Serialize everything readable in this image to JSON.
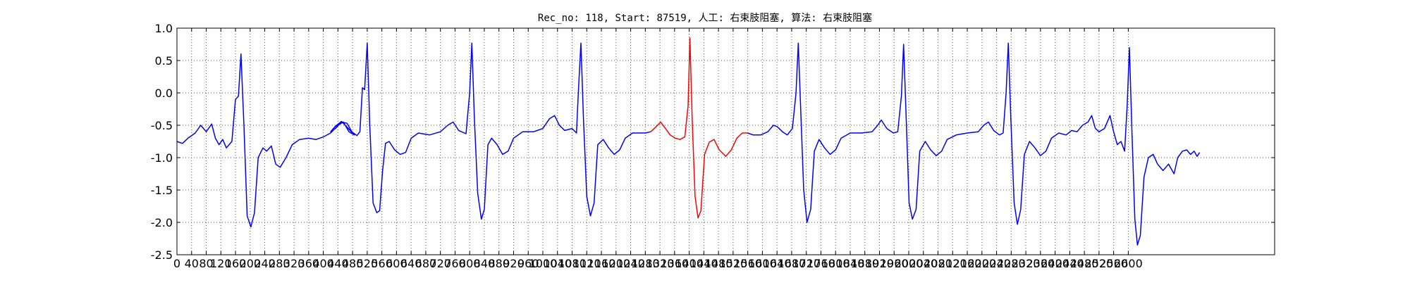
{
  "chart_data": {
    "type": "line",
    "title": "Rec_no: 118, Start: 87519, 人工: 右束肢阻塞, 算法: 右束肢阻塞",
    "xlabel": "",
    "ylabel": "",
    "xlim": [
      0,
      3000
    ],
    "ylim": [
      -2.5,
      1.0
    ],
    "y_ticks": [
      "1.0",
      "0.5",
      "0.0",
      "-0.5",
      "-1.0",
      "-1.5",
      "-2.0",
      "-2.5"
    ],
    "x_ticks": [
      "0",
      "40",
      "80",
      "120",
      "160",
      "200",
      "240",
      "280",
      "320",
      "360",
      "400",
      "440",
      "480",
      "520",
      "560",
      "600",
      "640",
      "680",
      "720",
      "760",
      "800",
      "840",
      "880",
      "920",
      "960",
      "1000",
      "1040",
      "1080",
      "1120",
      "1160",
      "1200",
      "1240",
      "1280",
      "1320",
      "1360",
      "1400",
      "1440",
      "1480",
      "1520",
      "1560",
      "1600",
      "1640",
      "1680",
      "1720",
      "1760",
      "1800",
      "1840",
      "1880",
      "1920",
      "1960",
      "2000",
      "2040",
      "2080",
      "2120",
      "2160",
      "2200",
      "2240",
      "2280",
      "2320",
      "2360",
      "2400",
      "2440",
      "2480",
      "2520",
      "2560",
      "2600"
    ],
    "grid": true,
    "grid_style": "dotted",
    "colors": {
      "signal": "#0000ff",
      "highlight": "#ff0000",
      "grid": "#555555"
    },
    "series": [
      {
        "color": "#0000ff",
        "points": [
          [
            0,
            -0.75
          ],
          [
            15,
            -0.78
          ],
          [
            30,
            -0.7
          ],
          [
            50,
            -0.62
          ],
          [
            65,
            -0.5
          ],
          [
            80,
            -0.6
          ],
          [
            95,
            -0.48
          ],
          [
            105,
            -0.7
          ],
          [
            115,
            -0.8
          ],
          [
            125,
            -0.72
          ],
          [
            135,
            -0.85
          ],
          [
            150,
            -0.75
          ],
          [
            160,
            -0.1
          ],
          [
            168,
            -0.05
          ],
          [
            175,
            0.6
          ],
          [
            183,
            -0.5
          ],
          [
            192,
            -1.9
          ],
          [
            202,
            -2.07
          ],
          [
            212,
            -1.85
          ],
          [
            222,
            -1.0
          ],
          [
            235,
            -0.85
          ],
          [
            245,
            -0.9
          ],
          [
            258,
            -0.82
          ],
          [
            270,
            -1.1
          ],
          [
            282,
            -1.15
          ],
          [
            298,
            -1.0
          ],
          [
            315,
            -0.8
          ],
          [
            335,
            -0.72
          ],
          [
            360,
            -0.7
          ],
          [
            380,
            -0.72
          ],
          [
            400,
            -0.68
          ],
          [
            420,
            -0.62
          ],
          [
            440,
            -0.5
          ],
          [
            455,
            -0.45
          ],
          [
            470,
            -0.6
          ],
          [
            485,
            -0.65
          ],
          [
            450,
            -0.44
          ],
          [
            432,
            -0.52
          ],
          [
            420,
            -0.6
          ],
          [
            433,
            -0.55
          ],
          [
            450,
            -0.45
          ],
          [
            465,
            -0.47
          ],
          [
            478,
            -0.6
          ],
          [
            492,
            -0.66
          ],
          [
            500,
            -0.6
          ],
          [
            507,
            0.08
          ],
          [
            513,
            0.05
          ],
          [
            520,
            0.77
          ],
          [
            527,
            -0.5
          ],
          [
            536,
            -1.7
          ],
          [
            546,
            -1.85
          ],
          [
            554,
            -1.82
          ],
          [
            562,
            -1.2
          ],
          [
            570,
            -0.78
          ],
          [
            580,
            -0.75
          ],
          [
            595,
            -0.88
          ],
          [
            610,
            -0.95
          ],
          [
            625,
            -0.92
          ],
          [
            640,
            -0.7
          ],
          [
            660,
            -0.62
          ],
          [
            690,
            -0.65
          ],
          [
            720,
            -0.6
          ],
          [
            740,
            -0.5
          ],
          [
            755,
            -0.45
          ],
          [
            770,
            -0.58
          ],
          [
            790,
            -0.63
          ],
          [
            800,
            0.0
          ],
          [
            806,
            0.77
          ],
          [
            813,
            -0.4
          ],
          [
            822,
            -1.55
          ],
          [
            832,
            -1.95
          ],
          [
            840,
            -1.8
          ],
          [
            850,
            -0.8
          ],
          [
            860,
            -0.7
          ],
          [
            875,
            -0.8
          ],
          [
            890,
            -0.95
          ],
          [
            905,
            -0.9
          ],
          [
            920,
            -0.7
          ],
          [
            945,
            -0.6
          ],
          [
            975,
            -0.6
          ],
          [
            1000,
            -0.55
          ],
          [
            1018,
            -0.4
          ],
          [
            1032,
            -0.35
          ],
          [
            1045,
            -0.5
          ],
          [
            1060,
            -0.58
          ],
          [
            1080,
            -0.55
          ],
          [
            1092,
            -0.62
          ],
          [
            1097,
            0.0
          ],
          [
            1104,
            0.77
          ],
          [
            1111,
            -0.4
          ],
          [
            1120,
            -1.6
          ],
          [
            1130,
            -1.9
          ],
          [
            1140,
            -1.7
          ],
          [
            1150,
            -0.8
          ],
          [
            1165,
            -0.72
          ],
          [
            1180,
            -0.85
          ],
          [
            1195,
            -0.95
          ],
          [
            1210,
            -0.88
          ],
          [
            1225,
            -0.7
          ],
          [
            1245,
            -0.62
          ],
          [
            1265,
            -0.62
          ],
          [
            1280,
            -0.62
          ],
          [
            1295,
            -0.6
          ]
        ]
      },
      {
        "color": "#ff0000",
        "points": [
          [
            1295,
            -0.6
          ],
          [
            1310,
            -0.52
          ],
          [
            1322,
            -0.45
          ],
          [
            1335,
            -0.55
          ],
          [
            1348,
            -0.65
          ],
          [
            1362,
            -0.7
          ],
          [
            1375,
            -0.72
          ],
          [
            1388,
            -0.68
          ],
          [
            1397,
            -0.2
          ],
          [
            1402,
            0.85
          ],
          [
            1408,
            -0.4
          ],
          [
            1416,
            -1.6
          ],
          [
            1424,
            -1.93
          ],
          [
            1432,
            -1.82
          ],
          [
            1442,
            -0.95
          ],
          [
            1455,
            -0.76
          ],
          [
            1468,
            -0.72
          ],
          [
            1482,
            -0.88
          ],
          [
            1500,
            -0.98
          ],
          [
            1515,
            -0.88
          ],
          [
            1530,
            -0.7
          ],
          [
            1545,
            -0.62
          ],
          [
            1560,
            -0.62
          ]
        ]
      },
      {
        "color": "#0000ff",
        "points": [
          [
            1560,
            -0.62
          ],
          [
            1575,
            -0.65
          ],
          [
            1595,
            -0.65
          ],
          [
            1615,
            -0.6
          ],
          [
            1630,
            -0.5
          ],
          [
            1640,
            -0.52
          ],
          [
            1655,
            -0.6
          ],
          [
            1668,
            -0.65
          ],
          [
            1682,
            -0.55
          ],
          [
            1692,
            0.0
          ],
          [
            1698,
            0.77
          ],
          [
            1705,
            -0.3
          ],
          [
            1713,
            -1.5
          ],
          [
            1722,
            -2.0
          ],
          [
            1732,
            -1.8
          ],
          [
            1742,
            -0.9
          ],
          [
            1755,
            -0.72
          ],
          [
            1770,
            -0.85
          ],
          [
            1785,
            -0.95
          ],
          [
            1800,
            -0.88
          ],
          [
            1815,
            -0.7
          ],
          [
            1840,
            -0.62
          ],
          [
            1870,
            -0.62
          ],
          [
            1900,
            -0.6
          ],
          [
            1915,
            -0.5
          ],
          [
            1925,
            -0.42
          ],
          [
            1940,
            -0.55
          ],
          [
            1958,
            -0.62
          ],
          [
            1970,
            -0.6
          ],
          [
            1980,
            -0.05
          ],
          [
            1986,
            0.75
          ],
          [
            1993,
            -0.4
          ],
          [
            2001,
            -1.7
          ],
          [
            2010,
            -1.95
          ],
          [
            2020,
            -1.8
          ],
          [
            2030,
            -0.9
          ],
          [
            2045,
            -0.75
          ],
          [
            2060,
            -0.88
          ],
          [
            2075,
            -0.97
          ],
          [
            2090,
            -0.9
          ],
          [
            2105,
            -0.72
          ],
          [
            2130,
            -0.65
          ],
          [
            2160,
            -0.62
          ],
          [
            2190,
            -0.6
          ],
          [
            2205,
            -0.5
          ],
          [
            2218,
            -0.45
          ],
          [
            2232,
            -0.58
          ],
          [
            2248,
            -0.65
          ],
          [
            2258,
            -0.62
          ],
          [
            2266,
            0.0
          ],
          [
            2272,
            0.77
          ],
          [
            2279,
            -0.4
          ],
          [
            2288,
            -1.7
          ],
          [
            2297,
            -2.03
          ],
          [
            2306,
            -1.8
          ],
          [
            2316,
            -0.95
          ],
          [
            2330,
            -0.75
          ],
          [
            2345,
            -0.85
          ],
          [
            2360,
            -0.97
          ],
          [
            2375,
            -0.9
          ],
          [
            2390,
            -0.7
          ],
          [
            2410,
            -0.62
          ],
          [
            2430,
            -0.65
          ],
          [
            2445,
            -0.58
          ],
          [
            2460,
            -0.6
          ],
          [
            2475,
            -0.5
          ],
          [
            2490,
            -0.45
          ],
          [
            2500,
            -0.35
          ],
          [
            2510,
            -0.55
          ],
          [
            2520,
            -0.6
          ],
          [
            2535,
            -0.55
          ],
          [
            2550,
            -0.35
          ],
          [
            2560,
            -0.6
          ],
          [
            2570,
            -0.8
          ],
          [
            2580,
            -0.75
          ],
          [
            2590,
            -0.9
          ],
          [
            2597,
            -0.2
          ],
          [
            2603,
            0.7
          ],
          [
            2610,
            -0.6
          ],
          [
            2618,
            -1.95
          ],
          [
            2625,
            -2.35
          ],
          [
            2633,
            -2.2
          ],
          [
            2643,
            -1.3
          ],
          [
            2655,
            -1.0
          ],
          [
            2668,
            -0.95
          ],
          [
            2680,
            -1.1
          ],
          [
            2695,
            -1.2
          ],
          [
            2710,
            -1.1
          ],
          [
            2725,
            -1.25
          ],
          [
            2735,
            -1.0
          ],
          [
            2748,
            -0.9
          ],
          [
            2760,
            -0.88
          ],
          [
            2770,
            -0.95
          ],
          [
            2780,
            -0.9
          ],
          [
            2788,
            -0.98
          ],
          [
            2795,
            -0.92
          ]
        ]
      }
    ]
  }
}
